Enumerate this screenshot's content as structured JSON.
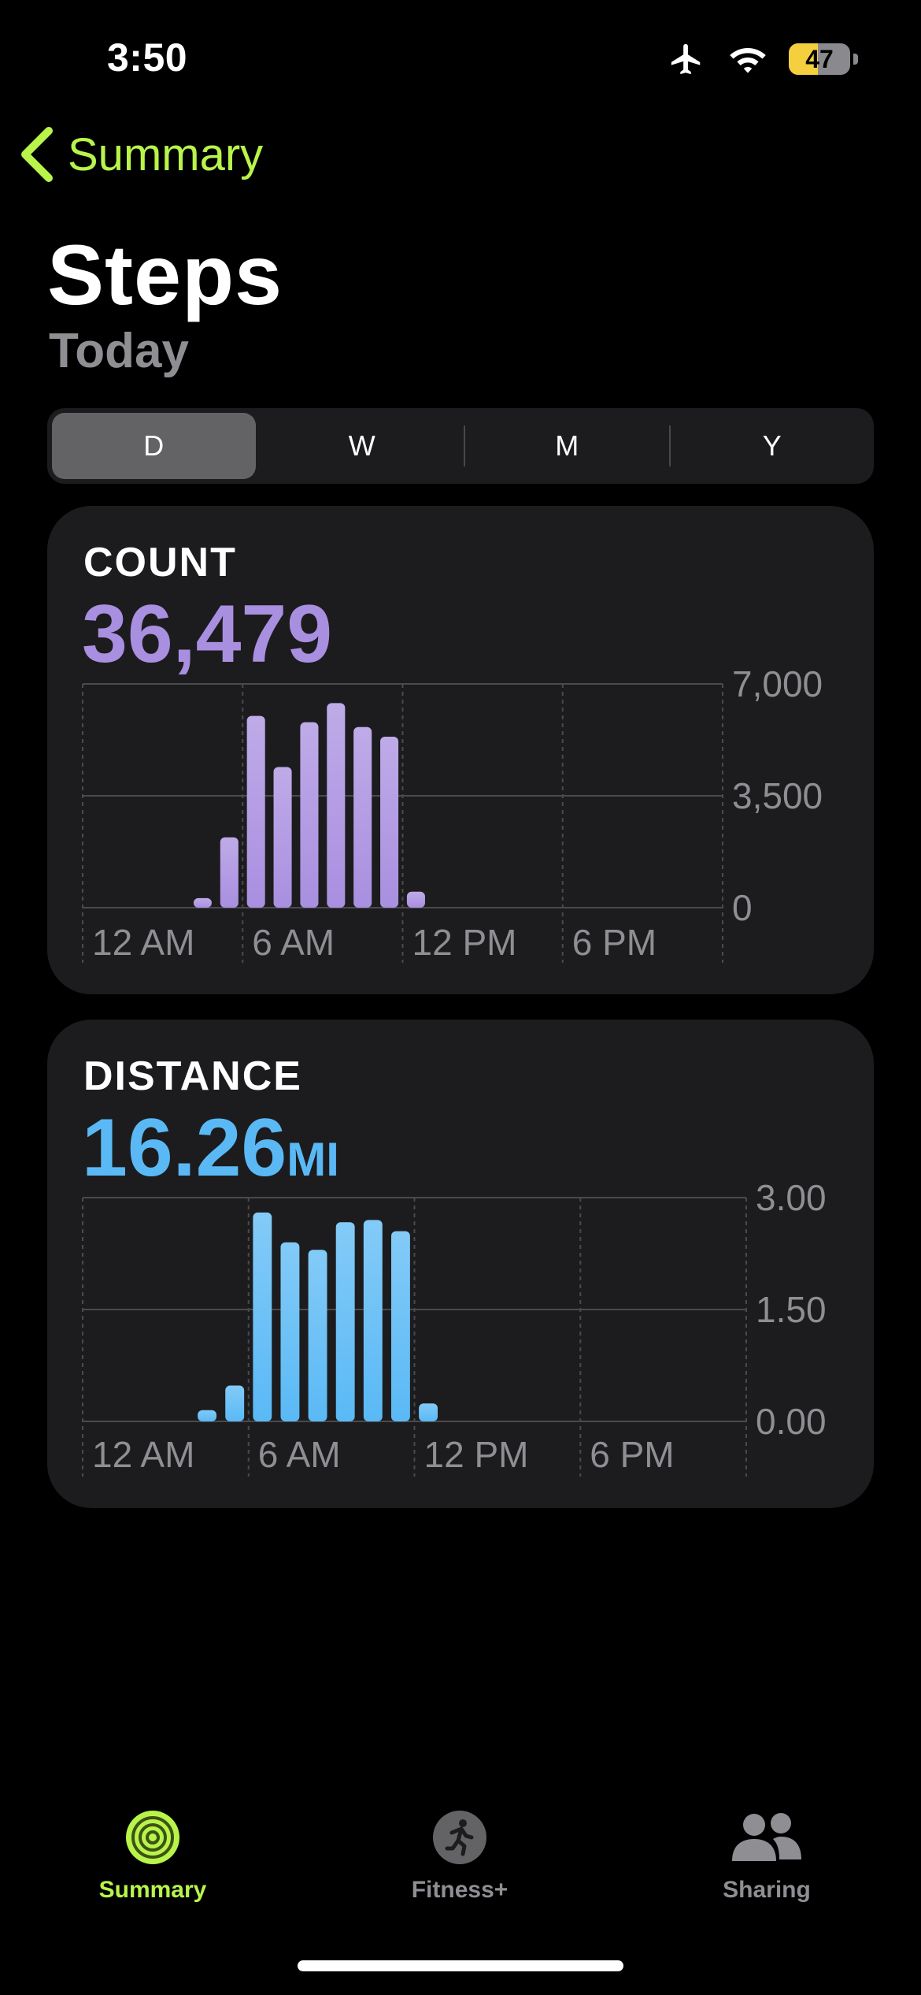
{
  "status": {
    "time": "3:50",
    "battery": "47",
    "battery_level": 0.47
  },
  "nav": {
    "back_label": "Summary"
  },
  "header": {
    "title": "Steps",
    "subtitle": "Today"
  },
  "segments": [
    "D",
    "W",
    "M",
    "Y"
  ],
  "selected_segment": "D",
  "count_card": {
    "title": "COUNT",
    "value": "36,479"
  },
  "distance_card": {
    "title": "DISTANCE",
    "value": "16.26",
    "unit": "MI"
  },
  "chart_data": [
    {
      "type": "bar",
      "x_labels": [
        "12 AM",
        "6 AM",
        "12 PM",
        "6 PM"
      ],
      "y_ticks": [
        "7,000",
        "3,500",
        "0"
      ],
      "ylim": [
        0,
        7000
      ],
      "hours": [
        4,
        5,
        6,
        7,
        8,
        9,
        10,
        11,
        12,
        13
      ],
      "values": [
        300,
        2200,
        6000,
        4400,
        5800,
        6400,
        5650,
        5350,
        500,
        0
      ],
      "color": "#a98fe0",
      "grid": true
    },
    {
      "type": "bar",
      "x_labels": [
        "12 AM",
        "6 AM",
        "12 PM",
        "6 PM"
      ],
      "y_ticks": [
        "3.00",
        "1.50",
        "0.00"
      ],
      "ylim": [
        0,
        3
      ],
      "hours": [
        4,
        5,
        6,
        7,
        8,
        9,
        10,
        11,
        12
      ],
      "values": [
        0.15,
        0.48,
        2.8,
        2.4,
        2.3,
        2.67,
        2.7,
        2.55,
        0.24
      ],
      "color": "#5ab9f5",
      "grid": true
    }
  ],
  "tabs": [
    {
      "label": "Summary",
      "icon": "activity-rings-icon",
      "active": true
    },
    {
      "label": "Fitness+",
      "icon": "runner-icon",
      "active": false
    },
    {
      "label": "Sharing",
      "icon": "people-icon",
      "active": false
    }
  ],
  "colors": {
    "accent": "#b8f44a",
    "count": "#a98fe0",
    "distance": "#5ab9f5",
    "card": "#1c1c1e"
  }
}
